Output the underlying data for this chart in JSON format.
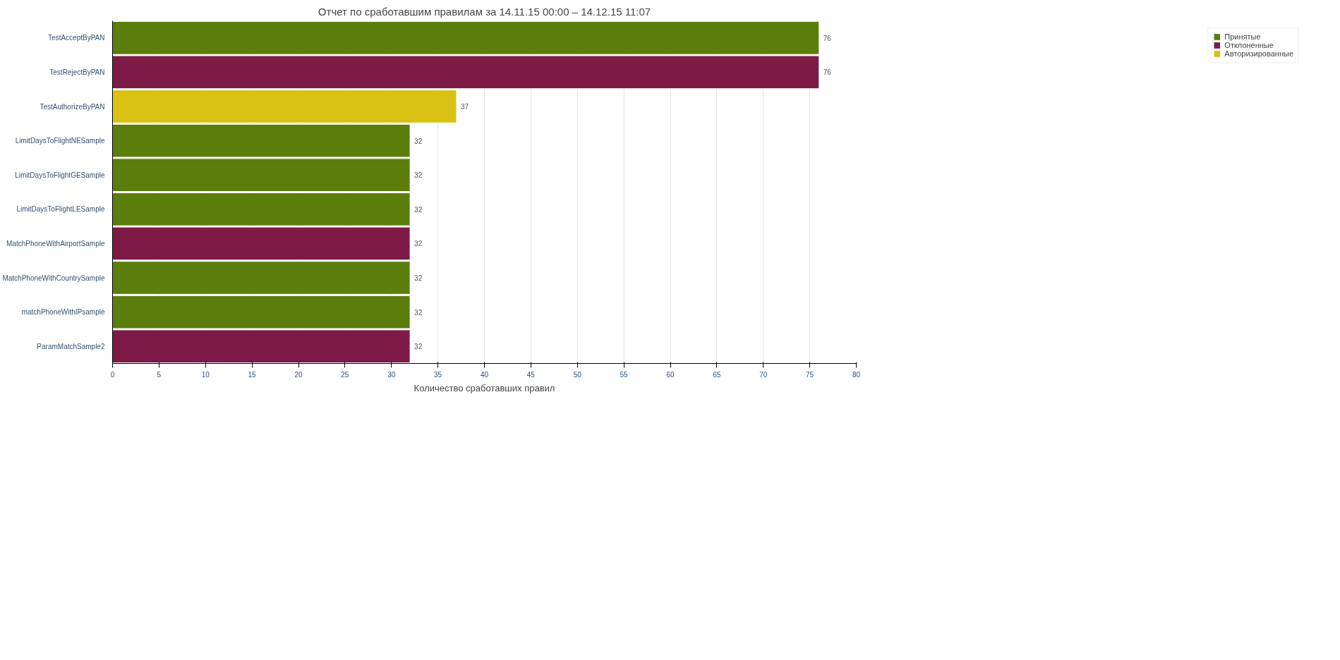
{
  "chart_data": {
    "type": "bar",
    "orientation": "horizontal",
    "title": "Отчет по сработавшим правилам за 14.11.15 00:00 – 14.12.15 11:07",
    "xlabel": "Количество сработавших правил",
    "categories": [
      "TestAcceptByPAN",
      "TestRejectByPAN",
      "TestAuthorizeByPAN",
      "LimitDaysToFlightNESample",
      "LimitDaysToFlightGESample",
      "LimitDaysToFlightLESample",
      "MatchPhoneWithAirportSample",
      "MatchPhoneWithCountrySample",
      "matchPhoneWithIPsample",
      "ParamMatchSample2"
    ],
    "series": [
      {
        "name": "Принятые",
        "color": "#5b7d0c",
        "values": [
          76,
          null,
          null,
          32,
          32,
          32,
          null,
          32,
          32,
          null
        ]
      },
      {
        "name": "Отклоненные",
        "color": "#7c1a45",
        "values": [
          null,
          76,
          null,
          null,
          null,
          null,
          32,
          null,
          null,
          32
        ]
      },
      {
        "name": "Авторизированные",
        "color": "#d9c213",
        "values": [
          null,
          null,
          37,
          null,
          null,
          null,
          null,
          null,
          null,
          null
        ]
      }
    ],
    "xlim": [
      0,
      80
    ],
    "xticks": [
      0,
      5,
      10,
      15,
      20,
      25,
      30,
      35,
      40,
      45,
      50,
      55,
      60,
      65,
      70,
      75,
      80
    ],
    "grid": "x",
    "legend": "right",
    "data_labels": true
  }
}
